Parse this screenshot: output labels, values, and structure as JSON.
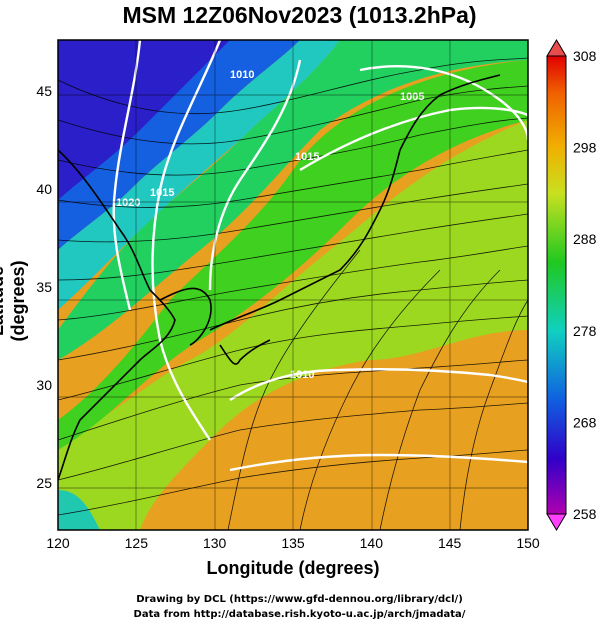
{
  "title": "MSM 12Z06Nov2023 (1013.2hPa)",
  "x_axis": {
    "label": "Longitude (degrees)",
    "ticks": [
      "120",
      "125",
      "130",
      "135",
      "140",
      "145",
      "150"
    ],
    "range": [
      120,
      150
    ]
  },
  "y_axis": {
    "label": "Latitude  (degrees)",
    "ticks": [
      "25",
      "30",
      "35",
      "40",
      "45"
    ],
    "range": [
      22.6,
      47.6
    ]
  },
  "colorbar": {
    "ticks": [
      "308",
      "298",
      "288",
      "278",
      "268",
      "258"
    ],
    "range": [
      258,
      308
    ]
  },
  "contour_labels": [
    "1010",
    "1020",
    "1015",
    "1005",
    "1015",
    "1010"
  ],
  "credits": {
    "line1": "Drawing by DCL (https://www.gfd-dennou.org/library/dcl/)",
    "line2": "Data from http://database.rish.kyoto-u.ac.jp/arch/jmadata/"
  },
  "colors": {
    "cold": "#2a1fc8",
    "mid": "#2ec62a",
    "warm": "#f0a21a",
    "contour": "#ffffff",
    "coast": "#000000"
  }
}
